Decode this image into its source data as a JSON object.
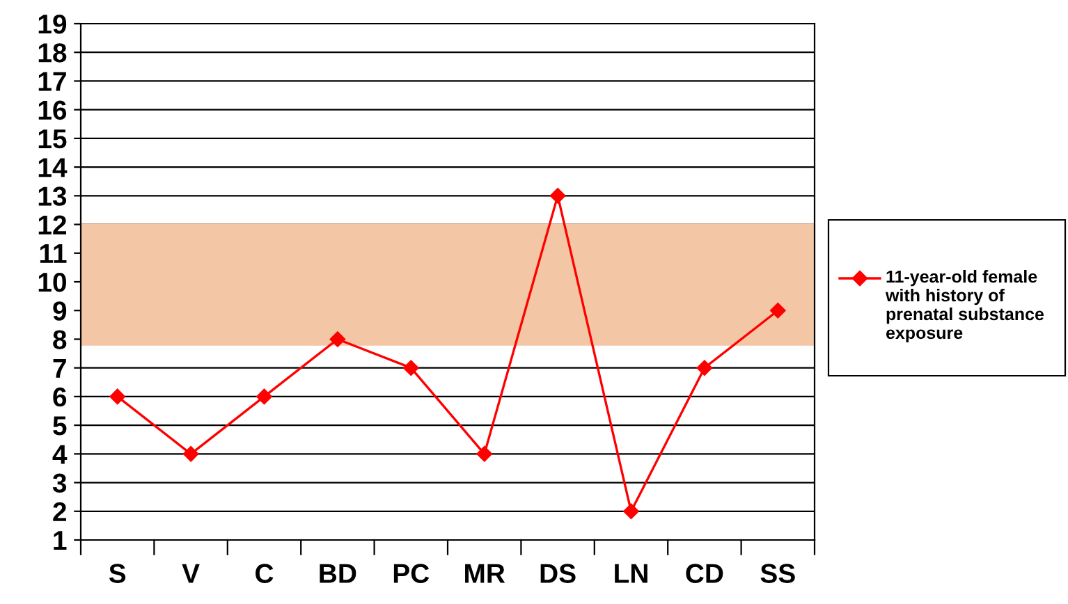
{
  "chart_data": {
    "type": "line",
    "categories": [
      "S",
      "V",
      "C",
      "BD",
      "PC",
      "MR",
      "DS",
      "LN",
      "CD",
      "SS"
    ],
    "series": [
      {
        "name": "11-year-old female with history of prenatal substance exposure",
        "color": "#ff0000",
        "values": [
          6,
          4,
          6,
          8,
          7,
          4,
          13,
          2,
          7,
          9
        ]
      }
    ],
    "ylim": [
      1,
      19
    ],
    "yticks": [
      1,
      2,
      3,
      4,
      5,
      6,
      7,
      8,
      9,
      10,
      11,
      12,
      13,
      14,
      15,
      16,
      17,
      18,
      19
    ],
    "grid": "y",
    "legend": "right",
    "marker": "diamond",
    "line_style": "solid",
    "bands": [
      {
        "axis": "y",
        "from": 7.8,
        "to": 12,
        "color": "#f3c6a5"
      }
    ]
  }
}
